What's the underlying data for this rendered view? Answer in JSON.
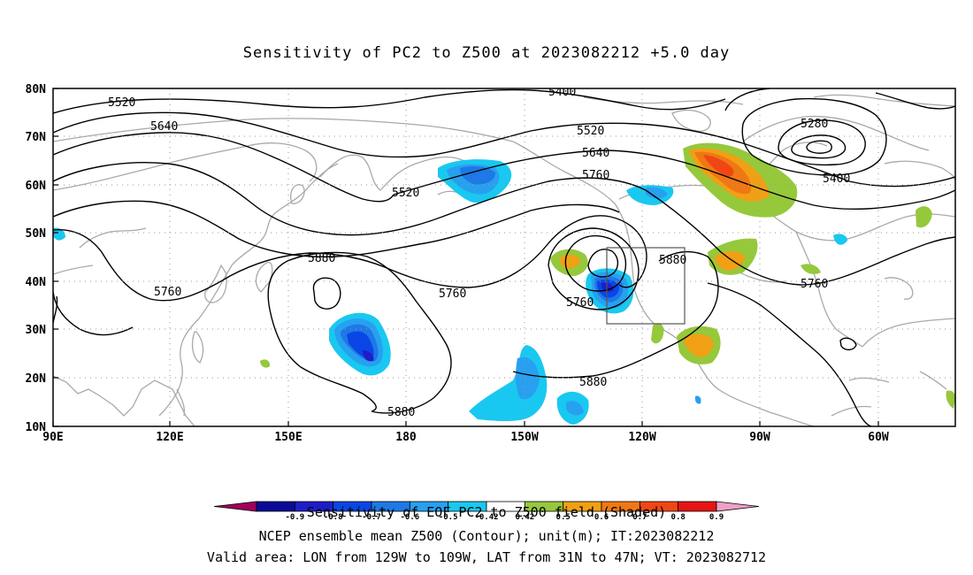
{
  "title": "Sensitivity of PC2 to Z500 at 2023082212 +5.0 day",
  "map": {
    "lon_ticks": [
      "90E",
      "120E",
      "150E",
      "180",
      "150W",
      "120W",
      "90W",
      "60W"
    ],
    "lat_ticks": [
      "80N",
      "70N",
      "60N",
      "50N",
      "40N",
      "30N",
      "20N",
      "10N"
    ],
    "domain": {
      "lon_range_east": [
        90,
        320
      ],
      "lat_range": [
        10,
        80
      ]
    },
    "gridlines": "dotted",
    "coastline_color": "#a9a9a9",
    "contour_labels": [
      "5400",
      "5520",
      "5640",
      "5520",
      "5520",
      "5640",
      "5760",
      "5280",
      "5400",
      "5880",
      "5880",
      "5760",
      "5760",
      "5760",
      "5880",
      "5880",
      "5760"
    ],
    "valid_area_box": {
      "lon": [
        "129W",
        "109W"
      ],
      "lat": [
        "31N",
        "47N"
      ]
    }
  },
  "colorbar": {
    "levels": [
      "-0.9",
      "-0.8",
      "-0.7",
      "-0.6",
      "-0.5",
      "-0.42",
      "0.42",
      "0.5",
      "0.6",
      "0.7",
      "0.8",
      "0.9"
    ],
    "colors": [
      "#a0005a",
      "#0a0a96",
      "#1e1ec8",
      "#0a46e6",
      "#1e78e6",
      "#28a0f0",
      "#19c8f0",
      "#ffffff",
      "#96c83c",
      "#f0a014",
      "#f07814",
      "#f04614",
      "#e61414",
      "#f0a0c8"
    ]
  },
  "caption": {
    "line1": "Sensitivity of EOF PC2 to Z500 field (Shaded)",
    "line2": "NCEP ensemble mean Z500 (Contour); unit(m); IT:2023082212",
    "line3": "Valid area: LON from 129W to 109W, LAT from 31N to 47N; VT: 2023082712"
  }
}
